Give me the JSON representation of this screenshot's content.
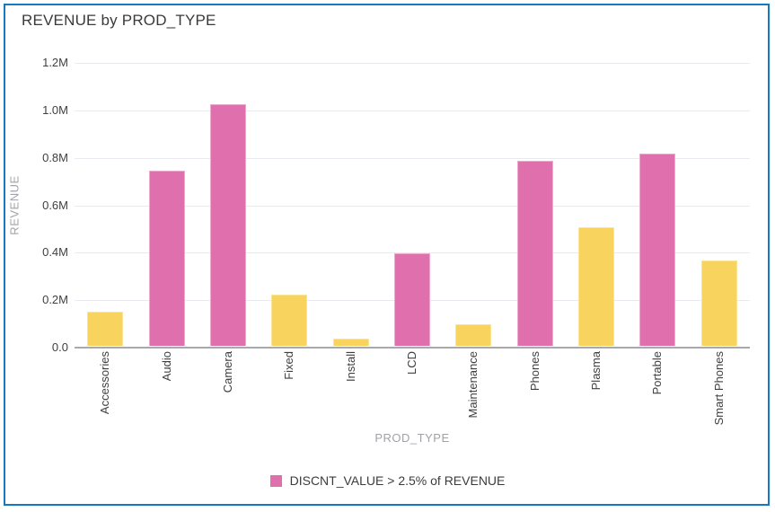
{
  "window": {
    "border_color": "#1778c2",
    "background": "#ffffff"
  },
  "chart_data": {
    "type": "bar",
    "title": "REVENUE by PROD_TYPE",
    "xlabel": "PROD_TYPE",
    "ylabel": "REVENUE",
    "unit": "M",
    "categories": [
      "Accessories",
      "Audio",
      "Camera",
      "Fixed",
      "Install",
      "LCD",
      "Maintenance",
      "Phones",
      "Plasma",
      "Portable",
      "Smart Phones"
    ],
    "values_m": [
      0.145,
      0.74,
      1.02,
      0.215,
      0.03,
      0.39,
      0.09,
      0.78,
      0.5,
      0.81,
      0.36
    ],
    "highlighted": [
      false,
      true,
      true,
      false,
      false,
      true,
      false,
      true,
      false,
      true,
      false
    ],
    "y_ticks": [
      {
        "label": "1.2M",
        "value": 1.2
      },
      {
        "label": "1.0M",
        "value": 1.0
      },
      {
        "label": "0.8M",
        "value": 0.8
      },
      {
        "label": "0.6M",
        "value": 0.6
      },
      {
        "label": "0.4M",
        "value": 0.4
      },
      {
        "label": "0.2M",
        "value": 0.2
      },
      {
        "label": "0.0",
        "value": 0
      }
    ],
    "ylim": [
      0,
      1.2
    ],
    "grid": true,
    "legend": {
      "label": "DISCNT_VALUE > 2.5% of REVENUE",
      "position": "bottom"
    },
    "colors": {
      "highlight": "#e06fae",
      "normal": "#f8d45e"
    }
  }
}
